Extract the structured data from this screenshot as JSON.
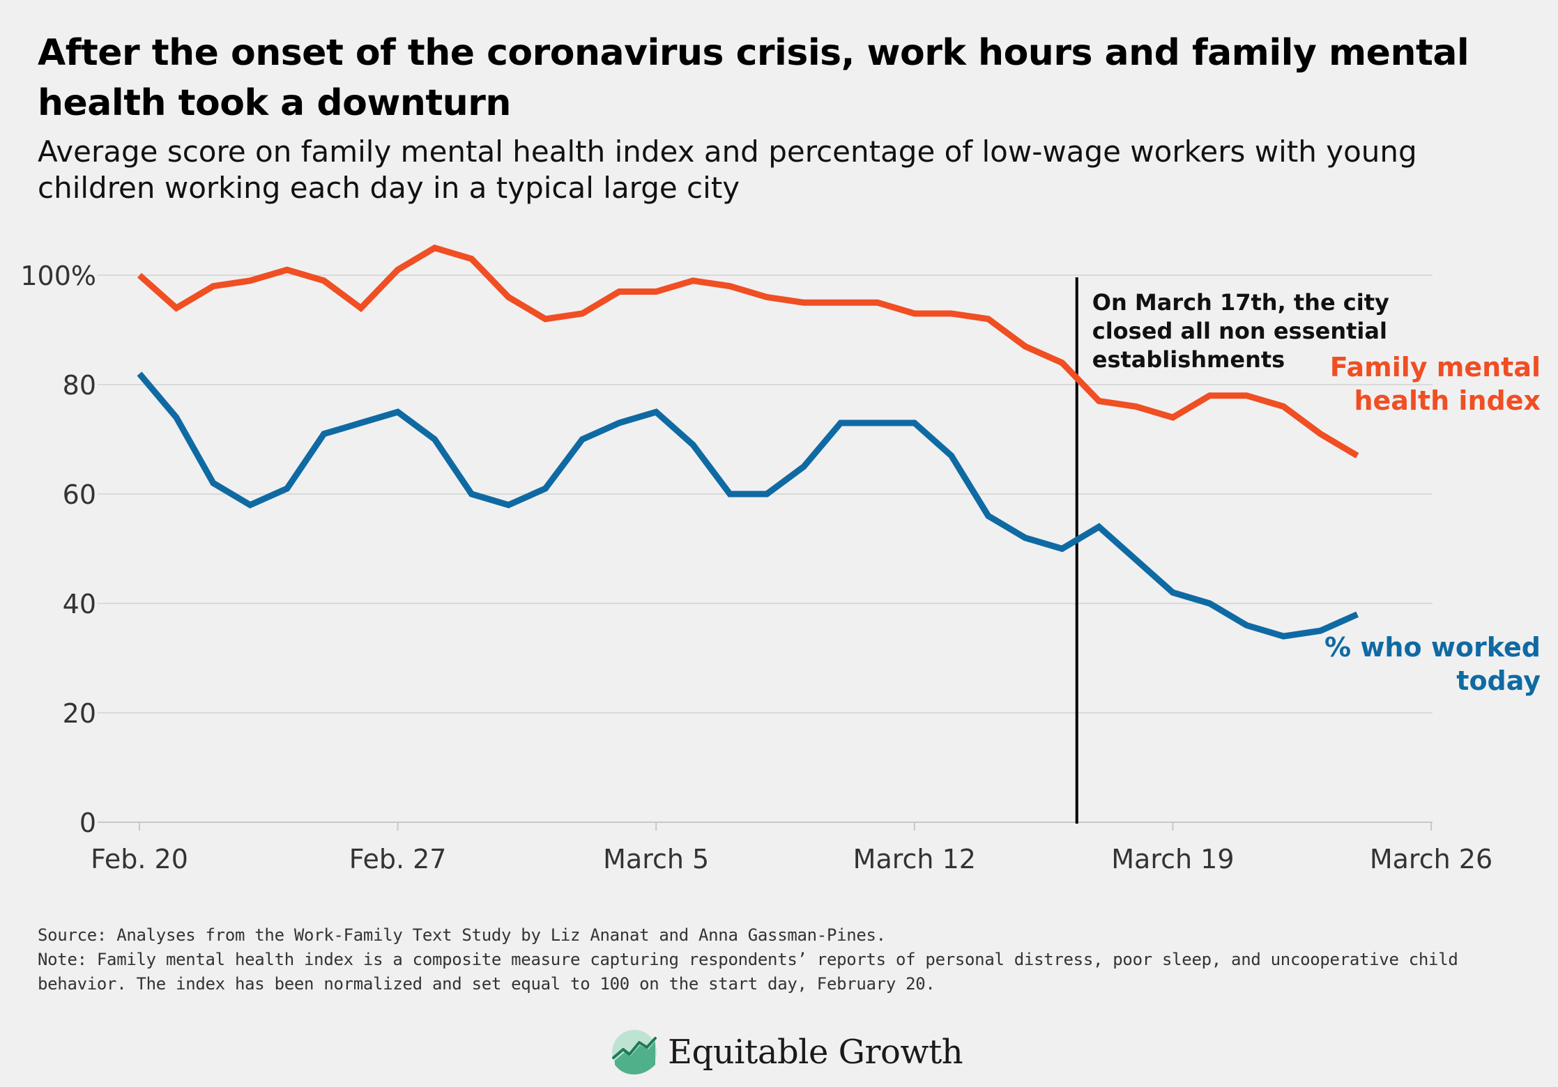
{
  "header": {
    "title": "After the onset of the coronavirus crisis, work hours and family mental health took a downturn",
    "subtitle": "Average score on family mental health index and percentage of low-wage workers with young children working each day in a typical large city"
  },
  "chart_data": {
    "type": "line",
    "title": "After the onset of the coronavirus crisis, work hours and family mental health took a downturn",
    "subtitle": "Average score on family mental health index and percentage of low-wage workers with young children working each day in a typical large city",
    "xlabel": "",
    "ylabel": "",
    "ylim": [
      0,
      100
    ],
    "xlim_days": [
      0,
      35
    ],
    "y_ticks": [
      0,
      20,
      40,
      60,
      80,
      100
    ],
    "y_tick_labels": [
      "0",
      "20",
      "40",
      "60",
      "80",
      "100%"
    ],
    "x_ticks": [
      0,
      7,
      14,
      21,
      28,
      35
    ],
    "x_tick_labels": [
      "Feb. 20",
      "Feb. 27",
      "March 5",
      "March 12",
      "March 19",
      "March 26"
    ],
    "grid": "horizontal",
    "series": [
      {
        "name": "Family mental health index",
        "label": "Family mental\nhealth index",
        "color": "#f04e23",
        "values": [
          100,
          94,
          98,
          99,
          101,
          99,
          94,
          101,
          105,
          103,
          96,
          92,
          93,
          97,
          97,
          99,
          98,
          96,
          95,
          95,
          95,
          93,
          93,
          92,
          87,
          84,
          77,
          76,
          74,
          78,
          78,
          76,
          71,
          67
        ]
      },
      {
        "name": "% who worked today",
        "label": "% who worked\ntoday",
        "color": "#0f6aa3",
        "values": [
          82,
          74,
          62,
          58,
          61,
          71,
          73,
          75,
          70,
          60,
          58,
          61,
          70,
          73,
          75,
          69,
          60,
          60,
          65,
          73,
          73,
          73,
          67,
          56,
          52,
          50,
          54,
          48,
          42,
          40,
          36,
          34,
          35,
          38
        ]
      }
    ],
    "annotations": [
      {
        "text": "On March 17th, the city closed all non essential establishments",
        "lines": [
          "On March 17th, the city",
          "closed all non essential",
          "establishments"
        ],
        "x_day": 25.4
      }
    ]
  },
  "footer": {
    "source": "Source: Analyses from the Work-Family Text Study by Liz Ananat and Anna Gassman-Pines.",
    "note": "Note: Family mental health index is a composite measure capturing respondents’ reports of personal distress, poor sleep, and uncooperative child behavior. The index has been normalized and set equal to 100 on the start day, February 20.",
    "brand": "Equitable Growth"
  },
  "colors": {
    "background": "#f0f0f0",
    "orange": "#f04e23",
    "blue": "#0f6aa3",
    "grid": "#d9d9d9",
    "logo_green": "#4fb08a"
  }
}
